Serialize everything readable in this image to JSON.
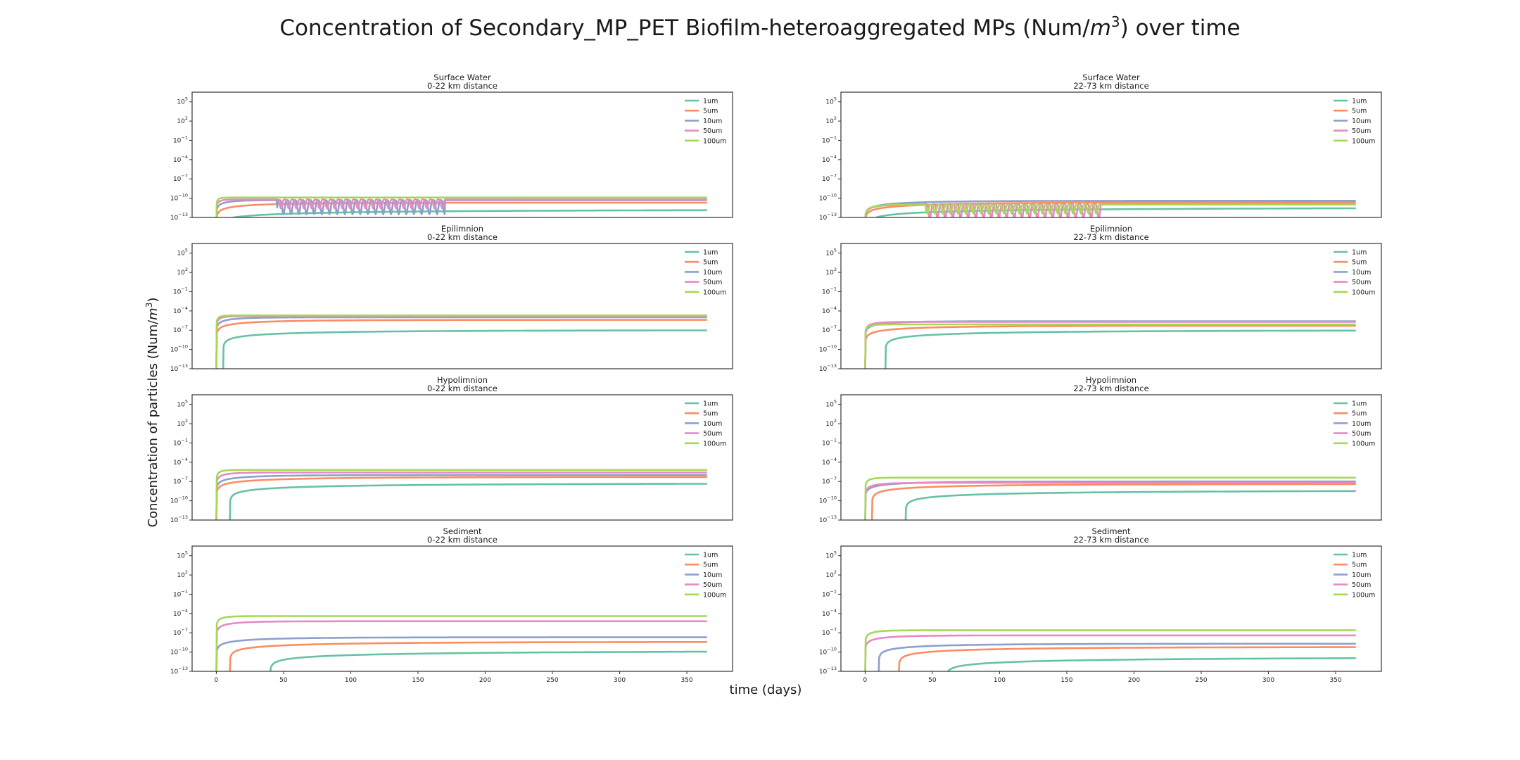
{
  "figure": {
    "title_pre": "Concentration of Secondary_MP_PET Biofilm-heteroaggregated MPs (Num/",
    "title_math": "m",
    "title_sup": "3",
    "title_post": ") over time",
    "xlabel": "time (days)",
    "ylabel_pre": "Concentration of particles (Num/",
    "ylabel_math": "m",
    "ylabel_sup": "3",
    "ylabel_post": ")"
  },
  "chart_data": {
    "type": "line",
    "x_ticks": [
      0,
      50,
      100,
      150,
      200,
      250,
      300,
      350
    ],
    "xlim": [
      -18,
      384
    ],
    "y_scale": "log",
    "y_ticks_exp": [
      -13,
      -10,
      -7,
      -4,
      -1,
      2,
      5
    ],
    "ylim_exp": [
      -13,
      6.5
    ],
    "grid": false,
    "legend_placement": "upper right",
    "sizes": [
      "1um",
      "5um",
      "10um",
      "50um",
      "100um"
    ],
    "colors": [
      "#66c2a5",
      "#fc8d62",
      "#8da0cb",
      "#e78ac3",
      "#a6d854"
    ],
    "panels": [
      {
        "compartment": "Surface Water",
        "distance": "0-22 km distance",
        "start": [
          0,
          0,
          0,
          0,
          0
        ],
        "final_exp": [
          -11.8,
          -10.7,
          -10.3,
          -10.2,
          -9.9
        ],
        "rate": [
          0.005,
          0.02,
          0.08,
          0.3,
          0.5
        ],
        "oscillation": {
          "series": [
            2,
            3
          ],
          "from": 45,
          "to": 170
        }
      },
      {
        "compartment": "Surface Water",
        "distance": "22-73 km distance",
        "start": [
          2,
          0,
          0,
          0,
          0
        ],
        "final_exp": [
          -11.5,
          -10.6,
          -10.4,
          -10.9,
          -11.0
        ],
        "rate": [
          0.005,
          0.01,
          0.02,
          0.06,
          0.1
        ],
        "oscillation": {
          "series": [
            3,
            4
          ],
          "from": 45,
          "to": 175
        }
      },
      {
        "compartment": "Epilimnion",
        "distance": "0-22 km distance",
        "start": [
          5,
          0,
          0,
          0,
          0
        ],
        "final_exp": [
          -7.0,
          -5.4,
          -5.0,
          -4.8,
          -4.7
        ],
        "rate": [
          0.008,
          0.02,
          0.06,
          0.2,
          0.35
        ]
      },
      {
        "compartment": "Epilimnion",
        "distance": "22-73 km distance",
        "start": [
          15,
          0,
          0,
          0,
          0
        ],
        "final_exp": [
          -7.0,
          -6.3,
          -5.6,
          -5.7,
          -6.1
        ],
        "rate": [
          0.006,
          0.015,
          0.04,
          0.12,
          0.25
        ]
      },
      {
        "compartment": "Hypolimnion",
        "distance": "0-22 km distance",
        "start": [
          10,
          0,
          0,
          0,
          0
        ],
        "final_exp": [
          -7.3,
          -6.3,
          -6.0,
          -5.6,
          -5.2
        ],
        "rate": [
          0.006,
          0.012,
          0.03,
          0.1,
          0.25
        ]
      },
      {
        "compartment": "Hypolimnion",
        "distance": "22-73 km distance",
        "start": [
          30,
          5,
          0,
          0,
          0
        ],
        "final_exp": [
          -8.4,
          -7.4,
          -7.0,
          -7.2,
          -6.4
        ],
        "rate": [
          0.005,
          0.01,
          0.025,
          0.08,
          0.2
        ]
      },
      {
        "compartment": "Sediment",
        "distance": "0-22 km distance",
        "start": [
          40,
          10,
          0,
          0,
          0
        ],
        "final_exp": [
          -9.8,
          -8.4,
          -7.7,
          -5.2,
          -4.4
        ],
        "rate": [
          0.004,
          0.008,
          0.02,
          0.05,
          0.15
        ]
      },
      {
        "compartment": "Sediment",
        "distance": "22-73 km distance",
        "start": [
          60,
          25,
          10,
          0,
          0
        ],
        "final_exp": [
          -10.8,
          -9.2,
          -8.7,
          -7.4,
          -6.6
        ],
        "rate": [
          0.004,
          0.008,
          0.015,
          0.04,
          0.1
        ]
      }
    ]
  }
}
